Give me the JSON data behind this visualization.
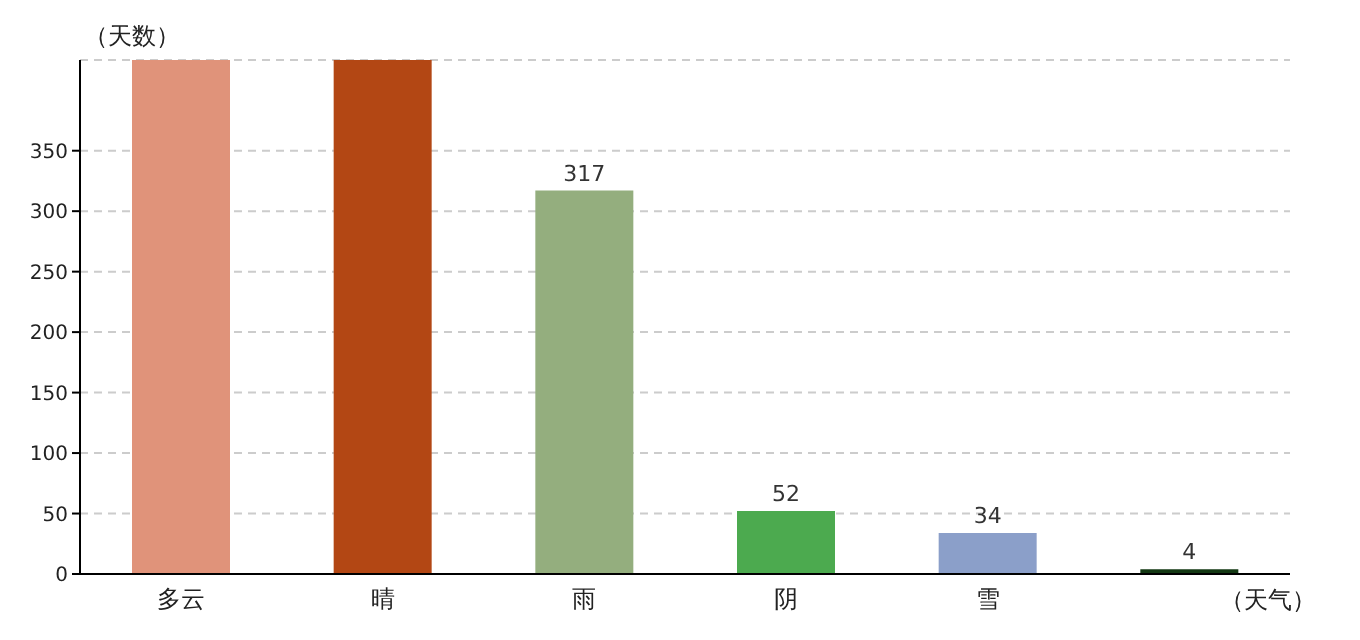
{
  "chart_data": {
    "type": "bar",
    "ylabel": "（天数）",
    "xlabel": "（天气）",
    "categories": [
      "多云",
      "晴",
      "雨",
      "阴",
      "雪",
      null
    ],
    "values": [
      425,
      425,
      317,
      52,
      34,
      4
    ],
    "colors": [
      "#e0937a",
      "#b34714",
      "#94ae7e",
      "#4caa4f",
      "#8b9fc9",
      "#133813"
    ],
    "value_labels": [
      null,
      null,
      "317",
      "52",
      "34",
      "4"
    ],
    "ylim": [
      0,
      425
    ],
    "yticks": [
      0,
      50,
      100,
      150,
      200,
      250,
      300,
      350
    ],
    "grid": "y"
  }
}
